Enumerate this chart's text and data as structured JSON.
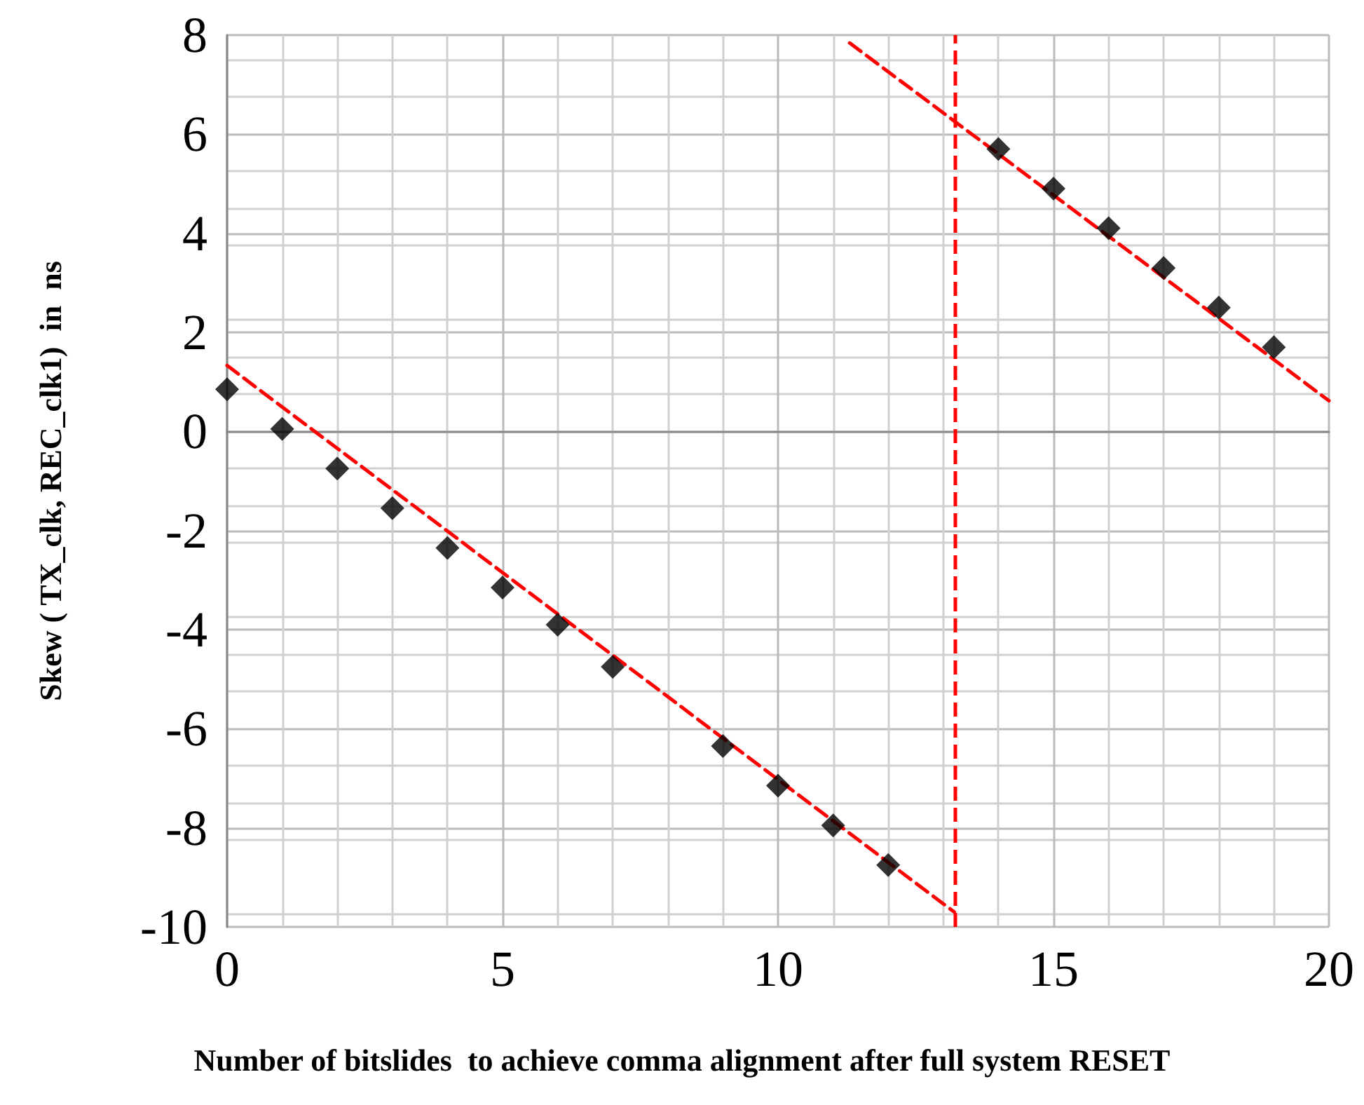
{
  "chart_data": {
    "type": "scatter",
    "xlabel": "Number of bitslides  to achieve comma alignment after full system RESET",
    "ylabel": "Skew ( TX_clk, REC_clk1)  in  ns",
    "xlim": [
      0,
      20
    ],
    "xticks": [
      0,
      5,
      10,
      15,
      20
    ],
    "ylim": [
      -10,
      8
    ],
    "yticks": [
      -10,
      -8,
      -6,
      -4,
      -2,
      0,
      2,
      4,
      6,
      8
    ],
    "grid": true,
    "marker": "diamond",
    "series": [
      {
        "color": "#000000",
        "x": [
          0,
          1,
          2,
          3,
          4,
          5,
          6,
          7,
          9,
          10,
          11,
          12
        ],
        "values": [
          0.85,
          0.05,
          -0.75,
          -1.55,
          -2.35,
          -3.15,
          -3.9,
          -4.75,
          -6.35,
          -7.15,
          -7.95,
          -8.75
        ]
      },
      {
        "color": "#000000",
        "x": [
          14,
          15,
          16,
          17,
          18,
          19
        ],
        "values": [
          5.7,
          4.9,
          4.1,
          3.3,
          2.5,
          1.7
        ]
      },
      {
        "type": "line",
        "color": "#ff0000",
        "line_style": "dashed",
        "marker": "none",
        "x": [
          0,
          13.2
        ],
        "values": [
          1.33,
          -9.7
        ]
      },
      {
        "type": "line",
        "color": "#ff0000",
        "line_style": "dashed",
        "marker": "none",
        "x": [
          11.3,
          20
        ],
        "values": [
          7.84,
          0.62
        ]
      }
    ],
    "ref_lines": [
      {
        "axis": "x",
        "value": 13.2,
        "color": "#ff0000",
        "line_style": "dashed"
      }
    ]
  }
}
